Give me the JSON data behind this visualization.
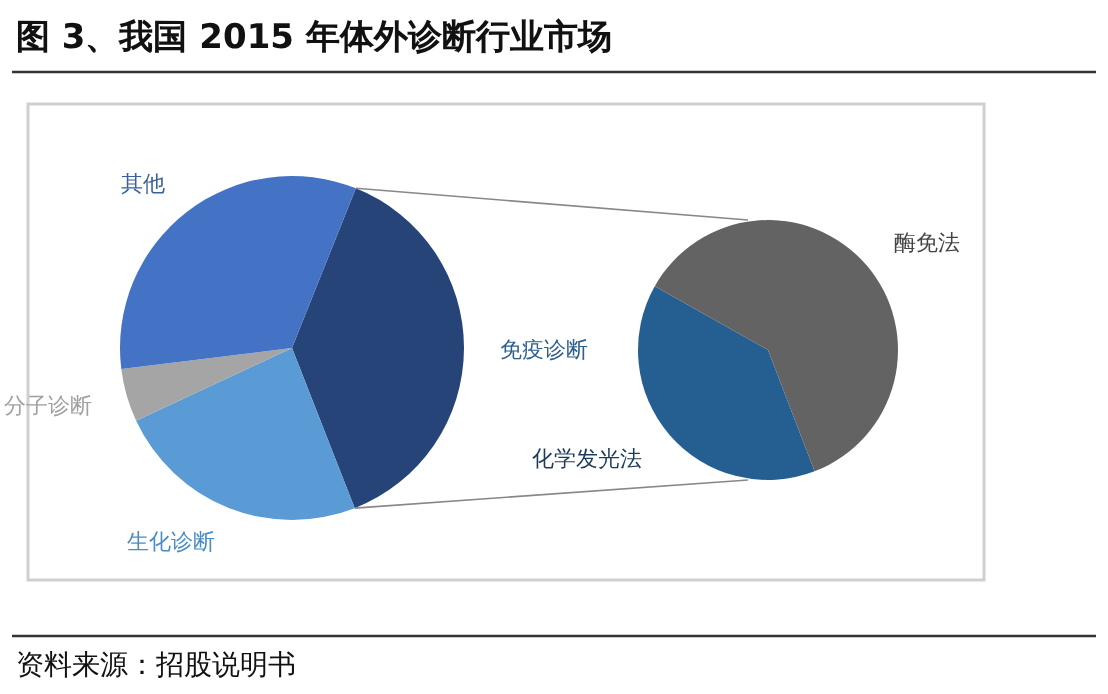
{
  "chart_data": [
    {
      "type": "pie",
      "title": "图 3、我国 2015 年体外诊断行业市场",
      "annotations": [
        "资料来源：招股说明书"
      ],
      "categories": [
        "免疫诊断",
        "生化诊断",
        "分子诊断",
        "其他"
      ],
      "values": [
        38,
        24,
        5,
        33
      ],
      "colors": [
        "#264478",
        "#5b9bd5",
        "#a5a5a5",
        "#4472c4"
      ]
    },
    {
      "type": "pie",
      "categories": [
        "化学发光法",
        "酶免法"
      ],
      "values": [
        39,
        61
      ],
      "colors": [
        "#255e91",
        "#636363"
      ]
    }
  ]
}
